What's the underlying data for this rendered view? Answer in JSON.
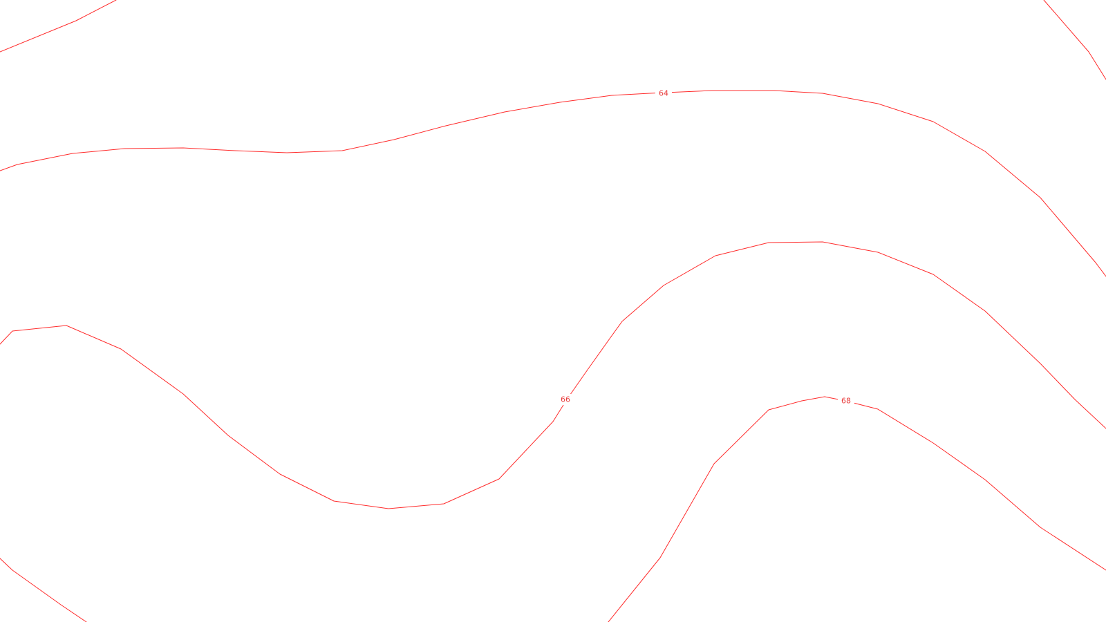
{
  "map": {
    "line_color": "#ff2b2b",
    "label_color": "#e83a3a",
    "background": "#ffffff",
    "contours": [
      {
        "name": "contour-62-top-left",
        "label": ""
      },
      {
        "name": "contour-62-top-right",
        "label": ""
      },
      {
        "name": "contour-64",
        "label": "64"
      },
      {
        "name": "contour-66",
        "label": "66"
      },
      {
        "name": "contour-68",
        "label": "68"
      },
      {
        "name": "contour-68-bottom-left",
        "label": ""
      }
    ]
  }
}
